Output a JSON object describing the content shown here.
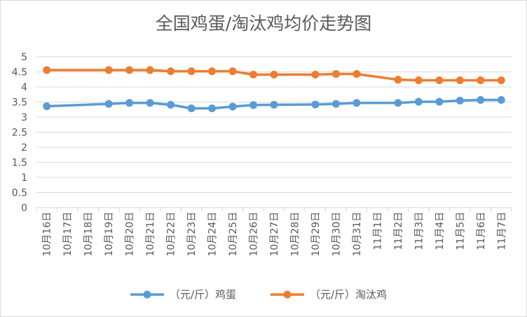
{
  "chart_data": {
    "type": "line",
    "title": "全国鸡蛋/淘汰鸡均价走势图",
    "xlabel": "",
    "ylabel": "",
    "ylim": [
      0,
      5
    ],
    "yticks": [
      "0",
      "0.5",
      "1",
      "1.5",
      "2",
      "2.5",
      "3",
      "3.5",
      "4",
      "4.5",
      "5"
    ],
    "grid": true,
    "legend_position": "bottom",
    "categories": [
      "10月16日",
      "10月17日",
      "10月18日",
      "10月19日",
      "10月20日",
      "10月21日",
      "10月22日",
      "10月23日",
      "10月24日",
      "10月25日",
      "10月26日",
      "10月27日",
      "10月28日",
      "10月29日",
      "10月30日",
      "10月31日",
      "11月1日",
      "11月2日",
      "11月3日",
      "11月4日",
      "11月5日",
      "11月6日",
      "11月7日"
    ],
    "series": [
      {
        "name": "（元/斤）鸡蛋",
        "color": "#5b9bd5",
        "values": [
          3.36,
          null,
          null,
          3.44,
          3.47,
          3.47,
          3.41,
          3.29,
          3.29,
          3.35,
          3.4,
          3.41,
          null,
          3.42,
          3.44,
          3.47,
          null,
          3.47,
          3.51,
          3.51,
          3.55,
          3.57,
          3.57
        ]
      },
      {
        "name": "（元/斤）淘汰鸡",
        "color": "#ed7d31",
        "values": [
          4.56,
          null,
          null,
          4.56,
          4.56,
          4.56,
          4.52,
          4.52,
          4.52,
          4.52,
          4.41,
          4.41,
          null,
          4.41,
          4.43,
          4.43,
          null,
          4.24,
          4.22,
          4.22,
          4.22,
          4.22,
          4.22
        ]
      }
    ]
  }
}
